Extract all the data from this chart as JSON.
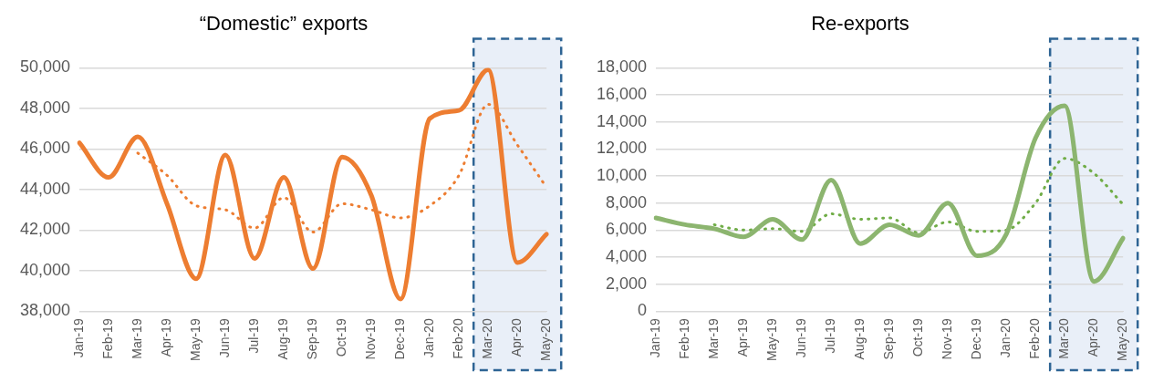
{
  "chart_data": [
    {
      "type": "line",
      "title": "“Domestic” exports",
      "categories": [
        "Jan-19",
        "Feb-19",
        "Mar-19",
        "Apr-19",
        "May-19",
        "Jun-19",
        "Jul-19",
        "Aug-19",
        "Sep-19",
        "Oct-19",
        "Nov-19",
        "Dec-19",
        "Jan-20",
        "Feb-20",
        "Mar-20",
        "Apr-20",
        "May-20"
      ],
      "series": [
        {
          "color": "#ed7d31",
          "line_style": "solid",
          "values": [
            46300,
            44600,
            46600,
            43300,
            39600,
            45700,
            40600,
            44600,
            40100,
            45600,
            43700,
            38600,
            47500,
            47900,
            49900,
            40400,
            41800
          ]
        },
        {
          "color": "#ed7d31",
          "line_style": "dotted",
          "values": [
            null,
            null,
            45800,
            44700,
            43200,
            43000,
            42100,
            43600,
            41900,
            43300,
            43000,
            42600,
            43200,
            44700,
            48200,
            46200,
            44100
          ]
        }
      ],
      "ylim": [
        38000,
        50000
      ],
      "yticks": [
        {
          "value": 38000,
          "label": "38,000"
        },
        {
          "value": 40000,
          "label": "40,000"
        },
        {
          "value": 42000,
          "label": "42,000"
        },
        {
          "value": 44000,
          "label": "44,000"
        },
        {
          "value": 46000,
          "label": "46,000"
        },
        {
          "value": 48000,
          "label": "48,000"
        },
        {
          "value": 50000,
          "label": "50,000"
        }
      ],
      "grid": "y",
      "legend": false,
      "marker": "none",
      "bands": [
        {
          "axis": "x",
          "from": "Mar-20",
          "to": "May-20",
          "color": "#e9eff8"
        }
      ]
    },
    {
      "type": "line",
      "title": "Re-exports",
      "categories": [
        "Jan-19",
        "Feb-19",
        "Mar-19",
        "Apr-19",
        "May-19",
        "Jun-19",
        "Jul-19",
        "Aug-19",
        "Sep-19",
        "Oct-19",
        "Nov-19",
        "Dec-19",
        "Jan-20",
        "Feb-20",
        "Mar-20",
        "Apr-20",
        "May-20"
      ],
      "series": [
        {
          "color": "#8cb56f",
          "line_style": "solid",
          "values": [
            6900,
            6400,
            6100,
            5500,
            6800,
            5300,
            9700,
            5000,
            6400,
            5600,
            8000,
            4100,
            5700,
            12800,
            15200,
            2200,
            5400
          ]
        },
        {
          "color": "#70ad47",
          "line_style": "dotted",
          "values": [
            null,
            null,
            6400,
            6000,
            6100,
            5900,
            7200,
            6800,
            6900,
            5800,
            6600,
            5900,
            6000,
            8000,
            11300,
            10200,
            7900
          ]
        }
      ],
      "ylim": [
        0,
        18000
      ],
      "yticks": [
        0,
        {
          "value": 2000,
          "label": "2,000"
        },
        {
          "value": 4000,
          "label": "4,000"
        },
        {
          "value": 6000,
          "label": "6,000"
        },
        {
          "value": 8000,
          "label": "8,000"
        },
        {
          "value": 10000,
          "label": "10,000"
        },
        {
          "value": 12000,
          "label": "12,000"
        },
        {
          "value": 14000,
          "label": "14,000"
        },
        {
          "value": 16000,
          "label": "16,000"
        },
        {
          "value": 18000,
          "label": "18,000"
        }
      ],
      "grid": "y",
      "legend": false,
      "marker": "none",
      "bands": [
        {
          "axis": "x",
          "from": "Mar-20",
          "to": "May-20",
          "color": "#e9eff8"
        }
      ]
    }
  ]
}
